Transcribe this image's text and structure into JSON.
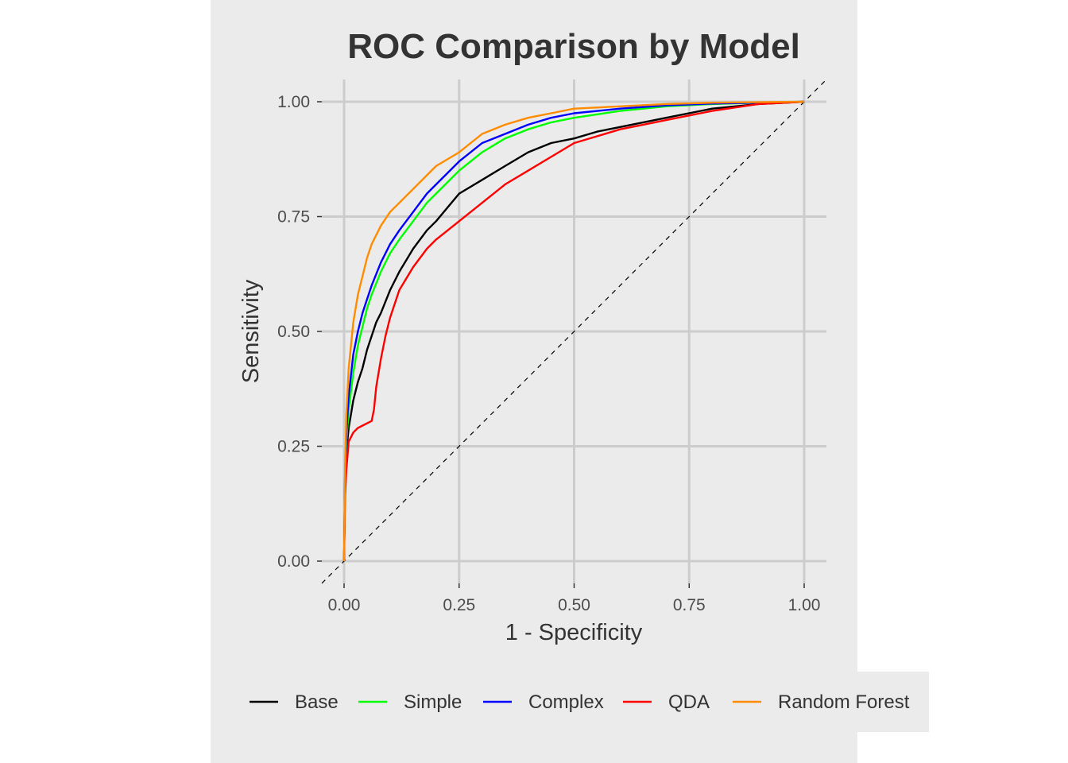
{
  "chart_data": {
    "type": "line",
    "title": "ROC Comparison by Model",
    "xlabel": "1 - Specificity",
    "ylabel": "Sensitivity",
    "xlim": [
      0,
      1
    ],
    "ylim": [
      0,
      1
    ],
    "xticks": [
      "0.00",
      "0.25",
      "0.50",
      "0.75",
      "1.00"
    ],
    "yticks": [
      "0.00",
      "0.25",
      "0.50",
      "0.75",
      "1.00"
    ],
    "grid": true,
    "legend_position": "bottom",
    "reference_line": "diagonal dashed",
    "series": [
      {
        "name": "Base",
        "color": "#000000",
        "x": [
          0,
          0.002,
          0.005,
          0.01,
          0.02,
          0.03,
          0.04,
          0.05,
          0.06,
          0.07,
          0.08,
          0.1,
          0.12,
          0.15,
          0.18,
          0.2,
          0.25,
          0.3,
          0.35,
          0.4,
          0.45,
          0.5,
          0.55,
          0.6,
          0.7,
          0.8,
          0.9,
          1.0
        ],
        "y": [
          0,
          0.16,
          0.24,
          0.29,
          0.35,
          0.39,
          0.42,
          0.46,
          0.49,
          0.52,
          0.54,
          0.59,
          0.63,
          0.68,
          0.72,
          0.74,
          0.8,
          0.83,
          0.86,
          0.89,
          0.91,
          0.92,
          0.935,
          0.945,
          0.965,
          0.985,
          0.995,
          1.0
        ]
      },
      {
        "name": "Simple",
        "color": "#00ff00",
        "x": [
          0,
          0.002,
          0.005,
          0.01,
          0.02,
          0.03,
          0.04,
          0.05,
          0.06,
          0.08,
          0.1,
          0.12,
          0.15,
          0.18,
          0.2,
          0.25,
          0.3,
          0.35,
          0.4,
          0.45,
          0.5,
          0.6,
          0.7,
          0.8,
          0.9,
          1.0
        ],
        "y": [
          0,
          0.18,
          0.26,
          0.33,
          0.41,
          0.47,
          0.51,
          0.55,
          0.58,
          0.63,
          0.67,
          0.7,
          0.74,
          0.78,
          0.8,
          0.85,
          0.89,
          0.92,
          0.94,
          0.955,
          0.965,
          0.98,
          0.99,
          0.995,
          0.998,
          1.0
        ]
      },
      {
        "name": "Complex",
        "color": "#0000ff",
        "x": [
          0,
          0.002,
          0.005,
          0.01,
          0.02,
          0.03,
          0.04,
          0.05,
          0.06,
          0.08,
          0.1,
          0.12,
          0.15,
          0.18,
          0.2,
          0.25,
          0.3,
          0.35,
          0.4,
          0.45,
          0.5,
          0.6,
          0.7,
          0.8,
          0.9,
          1.0
        ],
        "y": [
          0,
          0.19,
          0.28,
          0.36,
          0.45,
          0.5,
          0.54,
          0.57,
          0.6,
          0.65,
          0.69,
          0.72,
          0.76,
          0.8,
          0.82,
          0.87,
          0.91,
          0.93,
          0.95,
          0.965,
          0.975,
          0.985,
          0.992,
          0.996,
          0.998,
          1.0
        ]
      },
      {
        "name": "QDA",
        "color": "#ff0000",
        "x": [
          0,
          0.002,
          0.005,
          0.01,
          0.02,
          0.03,
          0.04,
          0.05,
          0.06,
          0.065,
          0.07,
          0.08,
          0.09,
          0.1,
          0.12,
          0.15,
          0.18,
          0.2,
          0.25,
          0.3,
          0.35,
          0.4,
          0.45,
          0.5,
          0.55,
          0.6,
          0.65,
          0.7,
          0.8,
          0.9,
          1.0
        ],
        "y": [
          0,
          0.14,
          0.2,
          0.26,
          0.28,
          0.29,
          0.295,
          0.3,
          0.305,
          0.33,
          0.38,
          0.44,
          0.49,
          0.53,
          0.59,
          0.64,
          0.68,
          0.7,
          0.74,
          0.78,
          0.82,
          0.85,
          0.88,
          0.91,
          0.925,
          0.94,
          0.95,
          0.96,
          0.98,
          0.995,
          1.0
        ]
      },
      {
        "name": "Random Forest",
        "color": "#ff8c00",
        "x": [
          0,
          0.002,
          0.005,
          0.01,
          0.02,
          0.03,
          0.04,
          0.05,
          0.06,
          0.08,
          0.1,
          0.12,
          0.15,
          0.18,
          0.2,
          0.25,
          0.3,
          0.35,
          0.4,
          0.45,
          0.5,
          0.6,
          0.7,
          0.8,
          0.9,
          1.0
        ],
        "y": [
          0,
          0.2,
          0.32,
          0.42,
          0.52,
          0.58,
          0.62,
          0.66,
          0.69,
          0.73,
          0.76,
          0.78,
          0.81,
          0.84,
          0.86,
          0.89,
          0.93,
          0.95,
          0.965,
          0.975,
          0.985,
          0.99,
          0.995,
          0.998,
          0.999,
          1.0
        ]
      }
    ]
  }
}
